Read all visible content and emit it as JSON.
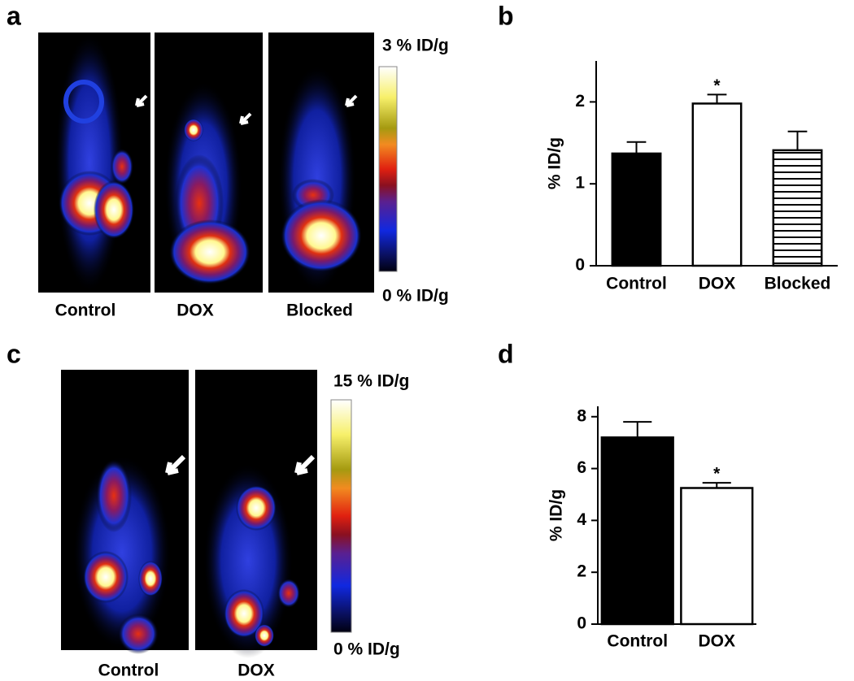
{
  "panels": {
    "a": {
      "letter": "a",
      "images": [
        "Control",
        "DOX",
        "Blocked"
      ],
      "scale_max": "3 % ID/g",
      "scale_min": "0 % ID/g"
    },
    "b": {
      "letter": "b"
    },
    "c": {
      "letter": "c",
      "images": [
        "Control",
        "DOX"
      ],
      "scale_max": "15 % ID/g",
      "scale_min": "0 % ID/g"
    },
    "d": {
      "letter": "d"
    }
  },
  "chart_data": [
    {
      "type": "bar",
      "y_label": "% ID/g",
      "categories": [
        "Control",
        "DOX",
        "Blocked"
      ],
      "values": [
        1.37,
        1.98,
        1.41
      ],
      "errors": [
        0.14,
        0.11,
        0.23
      ],
      "colors": [
        "#000000",
        "#ffffff",
        "#ffffff"
      ],
      "hatch": [
        false,
        false,
        true
      ],
      "ylim": [
        0,
        2.5
      ],
      "yticks": [
        0,
        1,
        2
      ],
      "annotations": [
        {
          "category": "DOX",
          "text": "*"
        }
      ]
    },
    {
      "type": "bar",
      "y_label": "% ID/g",
      "categories": [
        "Control",
        "DOX"
      ],
      "values": [
        7.2,
        5.25
      ],
      "errors": [
        0.6,
        0.2
      ],
      "colors": [
        "#000000",
        "#ffffff"
      ],
      "hatch": [
        false,
        false
      ],
      "ylim": [
        0,
        8.4
      ],
      "yticks": [
        0,
        2,
        4,
        6,
        8
      ],
      "annotations": [
        {
          "category": "DOX",
          "text": "*"
        }
      ]
    }
  ]
}
